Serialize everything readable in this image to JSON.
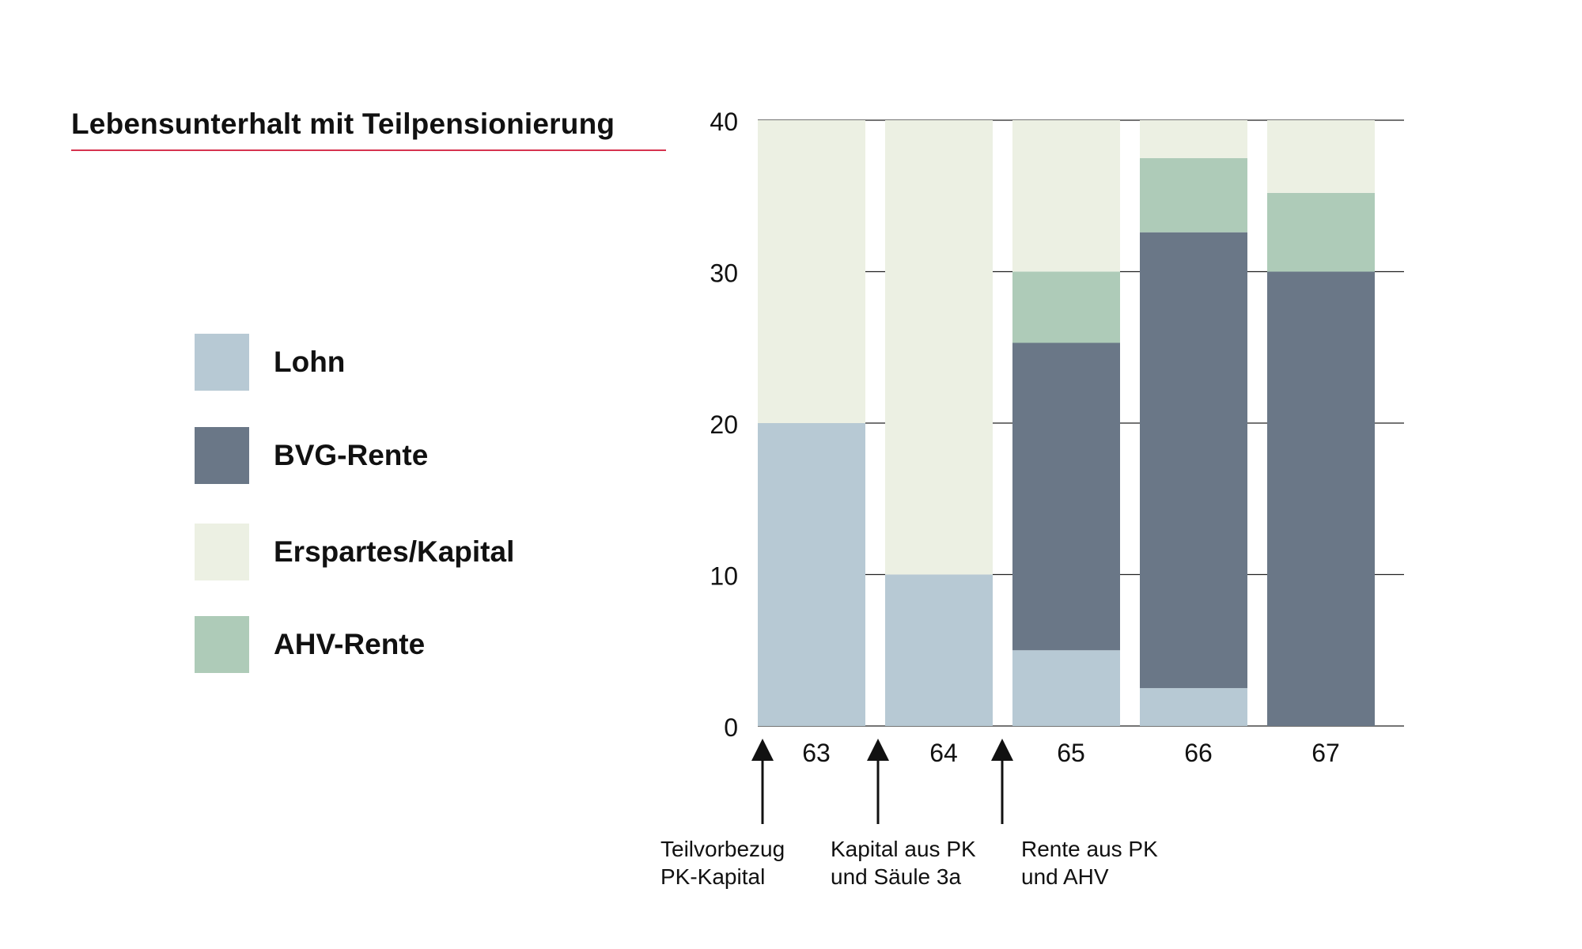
{
  "chart_data": {
    "type": "bar",
    "stacked": true,
    "title": "Lebensunterhalt mit Teilpensionierung",
    "categories": [
      "63",
      "64",
      "65",
      "66",
      "67"
    ],
    "ylim": [
      0,
      40
    ],
    "yticks": [
      0,
      10,
      20,
      30,
      40
    ],
    "grid": true,
    "legend_position": "left",
    "series": [
      {
        "name": "Lohn",
        "color": "#b7c9d4",
        "values": [
          20,
          10,
          5,
          2.5,
          0
        ]
      },
      {
        "name": "BVG-Rente",
        "color": "#6a7787",
        "values": [
          0,
          0,
          20.3,
          30.1,
          30
        ]
      },
      {
        "name": "AHV-Rente",
        "color": "#aecbb8",
        "values": [
          0,
          0,
          4.7,
          4.9,
          5.2
        ]
      },
      {
        "name": "Erspartes/Kapital",
        "color": "#ecf0e3",
        "values": [
          20,
          30,
          10,
          2.5,
          4.8
        ]
      }
    ],
    "legend_order": [
      "Lohn",
      "BVG-Rente",
      "Erspartes/Kapital",
      "AHV-Rente"
    ],
    "annotations": [
      {
        "position_between": [
          "",
          "63"
        ],
        "lines": [
          "Teilvorbezug",
          "PK-Kapital"
        ]
      },
      {
        "position_between": [
          "63",
          "64"
        ],
        "lines": [
          "Kapital aus PK",
          "und Säule 3a"
        ]
      },
      {
        "position_between": [
          "64",
          "65"
        ],
        "lines": [
          "Rente aus PK",
          "und AHV"
        ]
      }
    ]
  }
}
